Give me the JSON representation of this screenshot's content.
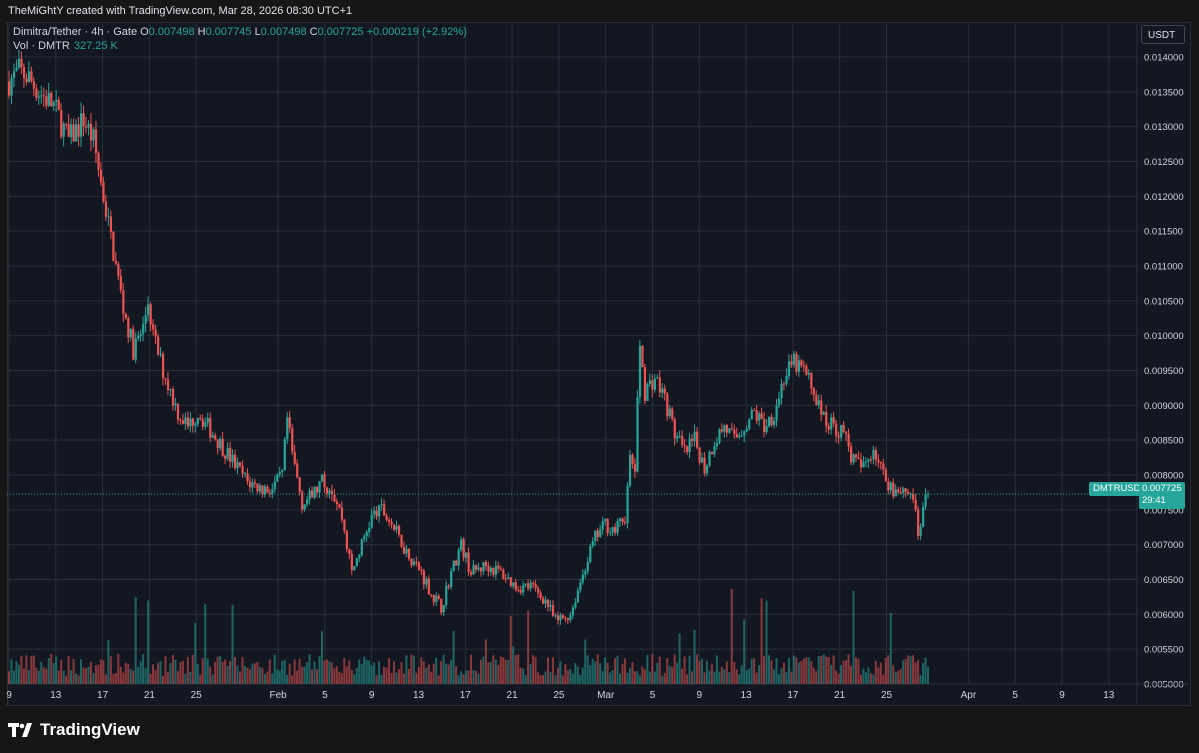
{
  "header": {
    "caption": "TheMiGhtY created with TradingView.com, Mar 28, 2026 08:30 UTC+1"
  },
  "legend": {
    "symbol": "Dimitra/Tether · 4h · Gate",
    "open_label": "O",
    "open": "0.007498",
    "high_label": "H",
    "high": "0.007745",
    "low_label": "L",
    "low": "0.007498",
    "close_label": "C",
    "close": "0.007725",
    "change": "+0.000219 (+2.92%)",
    "vol_label": "Vol · DMTR",
    "vol_value": "327.25 K"
  },
  "currency_button": "USDT",
  "price_tag": {
    "symbol": "DMTRUSDT",
    "price": "0.007725",
    "countdown": "29:41"
  },
  "footer": {
    "brand": "TradingView",
    "logo_icon": "tradingview-logo-icon"
  },
  "colors": {
    "up": "#26a69a",
    "down": "#ef5350",
    "bg": "#131722",
    "grid": "#2a2e39"
  },
  "chart_data": {
    "type": "candlestick",
    "interval": "4h",
    "price_ticks": [
      "0.005000",
      "0.005500",
      "0.006000",
      "0.006500",
      "0.007000",
      "0.007500",
      "0.008000",
      "0.008500",
      "0.009000",
      "0.009500",
      "0.010000",
      "0.010500",
      "0.011000",
      "0.011500",
      "0.012000",
      "0.012500",
      "0.013000",
      "0.013500",
      "0.014000"
    ],
    "ylim": [
      0.005,
      0.0142
    ],
    "x_ticks": [
      "9",
      "13",
      "17",
      "21",
      "25",
      "Feb",
      "5",
      "9",
      "13",
      "17",
      "21",
      "25",
      "Mar",
      "5",
      "9",
      "13",
      "17",
      "21",
      "25",
      "Apr",
      "5",
      "9",
      "13"
    ],
    "last_price": 0.007725,
    "price_path": [
      [
        0,
        0.01365
      ],
      [
        2,
        0.0138
      ],
      [
        4,
        0.0137
      ],
      [
        6,
        0.0135
      ],
      [
        9,
        0.0133
      ],
      [
        12,
        0.0128
      ],
      [
        15,
        0.0131
      ],
      [
        17,
        0.0128
      ],
      [
        19,
        0.012
      ],
      [
        21,
        0.0112
      ],
      [
        23,
        0.0104
      ],
      [
        25,
        0.0098
      ],
      [
        27,
        0.0101
      ],
      [
        28,
        0.0105
      ],
      [
        29,
        0.01
      ],
      [
        31,
        0.0095
      ],
      [
        34,
        0.0089
      ],
      [
        36,
        0.0087
      ],
      [
        38,
        0.0089
      ],
      [
        40,
        0.0087
      ],
      [
        42,
        0.0085
      ],
      [
        45,
        0.0082
      ],
      [
        48,
        0.0079
      ],
      [
        51,
        0.0078
      ],
      [
        53,
        0.0078
      ],
      [
        55,
        0.008
      ],
      [
        56,
        0.0088
      ],
      [
        57,
        0.0083
      ],
      [
        59,
        0.0076
      ],
      [
        61,
        0.0077
      ],
      [
        63,
        0.0079
      ],
      [
        65,
        0.0078
      ],
      [
        67,
        0.0074
      ],
      [
        69,
        0.0066
      ],
      [
        71,
        0.007
      ],
      [
        73,
        0.0074
      ],
      [
        75,
        0.0075
      ],
      [
        77,
        0.0073
      ],
      [
        80,
        0.0069
      ],
      [
        83,
        0.0066
      ],
      [
        85,
        0.0063
      ],
      [
        87,
        0.0061
      ],
      [
        89,
        0.0066
      ],
      [
        91,
        0.007
      ],
      [
        93,
        0.0066
      ],
      [
        96,
        0.0067
      ],
      [
        99,
        0.0066
      ],
      [
        102,
        0.0064
      ],
      [
        105,
        0.0064
      ],
      [
        108,
        0.0062
      ],
      [
        110,
        0.0059
      ],
      [
        113,
        0.006
      ],
      [
        116,
        0.0067
      ],
      [
        118,
        0.0071
      ],
      [
        120,
        0.0073
      ],
      [
        122,
        0.0072
      ],
      [
        124,
        0.0074
      ],
      [
        125,
        0.0082
      ],
      [
        126,
        0.0081
      ],
      [
        127,
        0.0099
      ],
      [
        128,
        0.0092
      ],
      [
        130,
        0.0094
      ],
      [
        132,
        0.0091
      ],
      [
        134,
        0.0086
      ],
      [
        136,
        0.0083
      ],
      [
        138,
        0.0085
      ],
      [
        140,
        0.0081
      ],
      [
        142,
        0.0085
      ],
      [
        144,
        0.0087
      ],
      [
        146,
        0.0085
      ],
      [
        148,
        0.0087
      ],
      [
        150,
        0.0089
      ],
      [
        152,
        0.0087
      ],
      [
        154,
        0.0089
      ],
      [
        156,
        0.0094
      ],
      [
        158,
        0.0096
      ],
      [
        160,
        0.0095
      ],
      [
        162,
        0.0092
      ],
      [
        164,
        0.0088
      ],
      [
        166,
        0.0087
      ],
      [
        168,
        0.0086
      ],
      [
        170,
        0.0082
      ],
      [
        172,
        0.0081
      ],
      [
        174,
        0.0084
      ],
      [
        176,
        0.008
      ],
      [
        178,
        0.0078
      ],
      [
        180,
        0.0078
      ],
      [
        182,
        0.0077
      ],
      [
        183,
        0.0071
      ],
      [
        184,
        0.0075
      ],
      [
        185,
        0.007725
      ]
    ]
  }
}
